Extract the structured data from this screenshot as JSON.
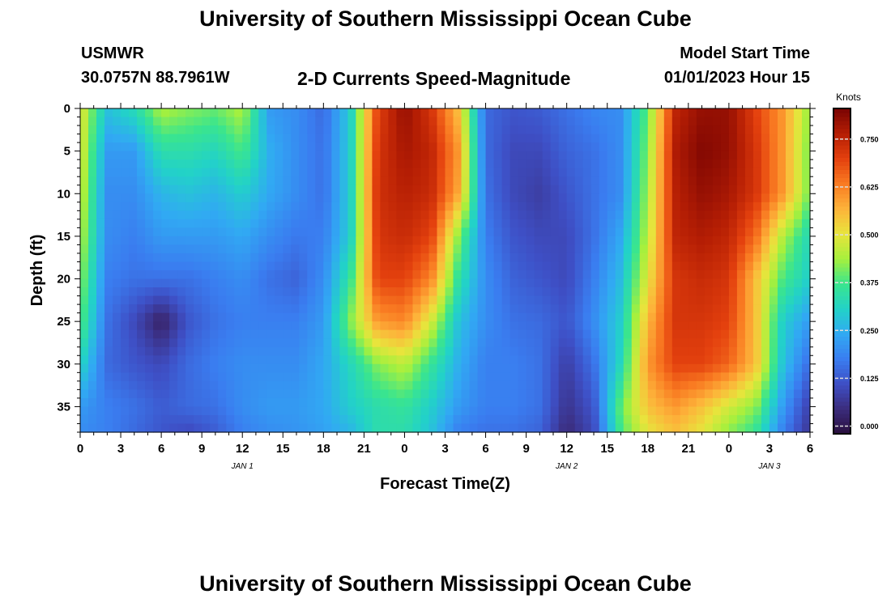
{
  "page": {
    "title": "University of Southern Mississippi Ocean Cube",
    "station": "USMWR",
    "coordinates": "30.0757N  88.7961W",
    "model_start_label": "Model Start Time",
    "model_start_value": "01/01/2023 Hour 15",
    "footer_title": "University of Southern Mississippi Ocean Cube"
  },
  "colors": {
    "colormap": [
      "#2a0f3d",
      "#3b2c7c",
      "#3e4fc5",
      "#3a7df0",
      "#31a9f3",
      "#22d2c8",
      "#3ae58e",
      "#a6f03d",
      "#e8e43c",
      "#fdb33a",
      "#f97b22",
      "#e4410e",
      "#b51e04",
      "#7a0403"
    ]
  },
  "chart_data": {
    "type": "heatmap",
    "title": "2-D Currents Speed-Magnitude",
    "xlabel": "Forecast Time(Z)",
    "ylabel": "Depth (ft)",
    "x_ticks": [
      "0",
      "3",
      "6",
      "9",
      "12",
      "15",
      "18",
      "21",
      "0",
      "3",
      "6",
      "9",
      "12",
      "15",
      "18",
      "21",
      "0",
      "3",
      "6"
    ],
    "x_range_hours": [
      0,
      54
    ],
    "day_labels": [
      {
        "hour": 12,
        "text": "JAN 1"
      },
      {
        "hour": 36,
        "text": "JAN 2"
      },
      {
        "hour": 51,
        "text": "JAN 3"
      }
    ],
    "y_ticks": [
      0,
      5,
      10,
      15,
      20,
      25,
      30,
      35
    ],
    "y_range_ft": [
      0,
      38
    ],
    "y_reversed": true,
    "colorbar": {
      "label": "Knots",
      "ticks": [
        "0.000",
        "0.125",
        "0.250",
        "0.375",
        "0.500",
        "0.625",
        "0.750"
      ],
      "range": [
        -0.02,
        0.83
      ]
    },
    "hours": [
      0,
      2,
      4,
      6,
      8,
      10,
      12,
      14,
      16,
      18,
      20,
      22,
      24,
      26,
      28,
      30,
      32,
      34,
      36,
      38,
      40,
      42,
      44,
      46,
      48,
      50,
      52,
      54
    ],
    "depths_ft": [
      0,
      5,
      10,
      15,
      20,
      25,
      30,
      35,
      38
    ],
    "speed_knots": [
      [
        0.5,
        0.28,
        0.33,
        0.45,
        0.42,
        0.4,
        0.45,
        0.22,
        0.2,
        0.15,
        0.3,
        0.7,
        0.8,
        0.72,
        0.55,
        0.15,
        0.12,
        0.13,
        0.16,
        0.19,
        0.2,
        0.4,
        0.75,
        0.8,
        0.8,
        0.7,
        0.6,
        0.42
      ],
      [
        0.5,
        0.22,
        0.22,
        0.34,
        0.34,
        0.32,
        0.38,
        0.25,
        0.2,
        0.16,
        0.3,
        0.72,
        0.78,
        0.75,
        0.6,
        0.15,
        0.1,
        0.1,
        0.14,
        0.16,
        0.2,
        0.42,
        0.77,
        0.82,
        0.8,
        0.72,
        0.6,
        0.4
      ],
      [
        0.48,
        0.2,
        0.2,
        0.26,
        0.28,
        0.26,
        0.3,
        0.24,
        0.2,
        0.16,
        0.3,
        0.73,
        0.76,
        0.74,
        0.58,
        0.16,
        0.1,
        0.08,
        0.12,
        0.16,
        0.2,
        0.44,
        0.76,
        0.8,
        0.78,
        0.72,
        0.6,
        0.4
      ],
      [
        0.46,
        0.2,
        0.18,
        0.22,
        0.22,
        0.22,
        0.24,
        0.2,
        0.17,
        0.18,
        0.3,
        0.72,
        0.74,
        0.7,
        0.42,
        0.18,
        0.12,
        0.1,
        0.1,
        0.16,
        0.24,
        0.46,
        0.75,
        0.77,
        0.75,
        0.65,
        0.45,
        0.32
      ],
      [
        0.43,
        0.18,
        0.16,
        0.16,
        0.16,
        0.18,
        0.2,
        0.16,
        0.14,
        0.2,
        0.36,
        0.7,
        0.7,
        0.62,
        0.35,
        0.2,
        0.14,
        0.12,
        0.1,
        0.18,
        0.27,
        0.5,
        0.72,
        0.74,
        0.72,
        0.55,
        0.38,
        0.3
      ],
      [
        0.4,
        0.16,
        0.1,
        0.02,
        0.12,
        0.16,
        0.18,
        0.18,
        0.18,
        0.22,
        0.42,
        0.6,
        0.62,
        0.48,
        0.28,
        0.2,
        0.16,
        0.15,
        0.12,
        0.2,
        0.3,
        0.56,
        0.72,
        0.72,
        0.7,
        0.55,
        0.3,
        0.22
      ],
      [
        0.32,
        0.15,
        0.12,
        0.1,
        0.15,
        0.18,
        0.2,
        0.2,
        0.2,
        0.24,
        0.32,
        0.42,
        0.46,
        0.36,
        0.25,
        0.18,
        0.18,
        0.16,
        0.08,
        0.16,
        0.32,
        0.6,
        0.7,
        0.7,
        0.66,
        0.55,
        0.28,
        0.15
      ],
      [
        0.22,
        0.18,
        0.16,
        0.13,
        0.15,
        0.16,
        0.2,
        0.22,
        0.22,
        0.24,
        0.3,
        0.34,
        0.36,
        0.3,
        0.22,
        0.18,
        0.18,
        0.16,
        0.06,
        0.12,
        0.4,
        0.55,
        0.6,
        0.55,
        0.48,
        0.42,
        0.22,
        0.08
      ],
      [
        0.2,
        0.18,
        0.15,
        0.12,
        0.1,
        0.13,
        0.18,
        0.2,
        0.21,
        0.23,
        0.26,
        0.34,
        0.34,
        0.28,
        0.18,
        0.16,
        0.16,
        0.14,
        0.04,
        0.1,
        0.38,
        0.5,
        0.55,
        0.5,
        0.42,
        0.36,
        0.18,
        0.06
      ]
    ]
  }
}
